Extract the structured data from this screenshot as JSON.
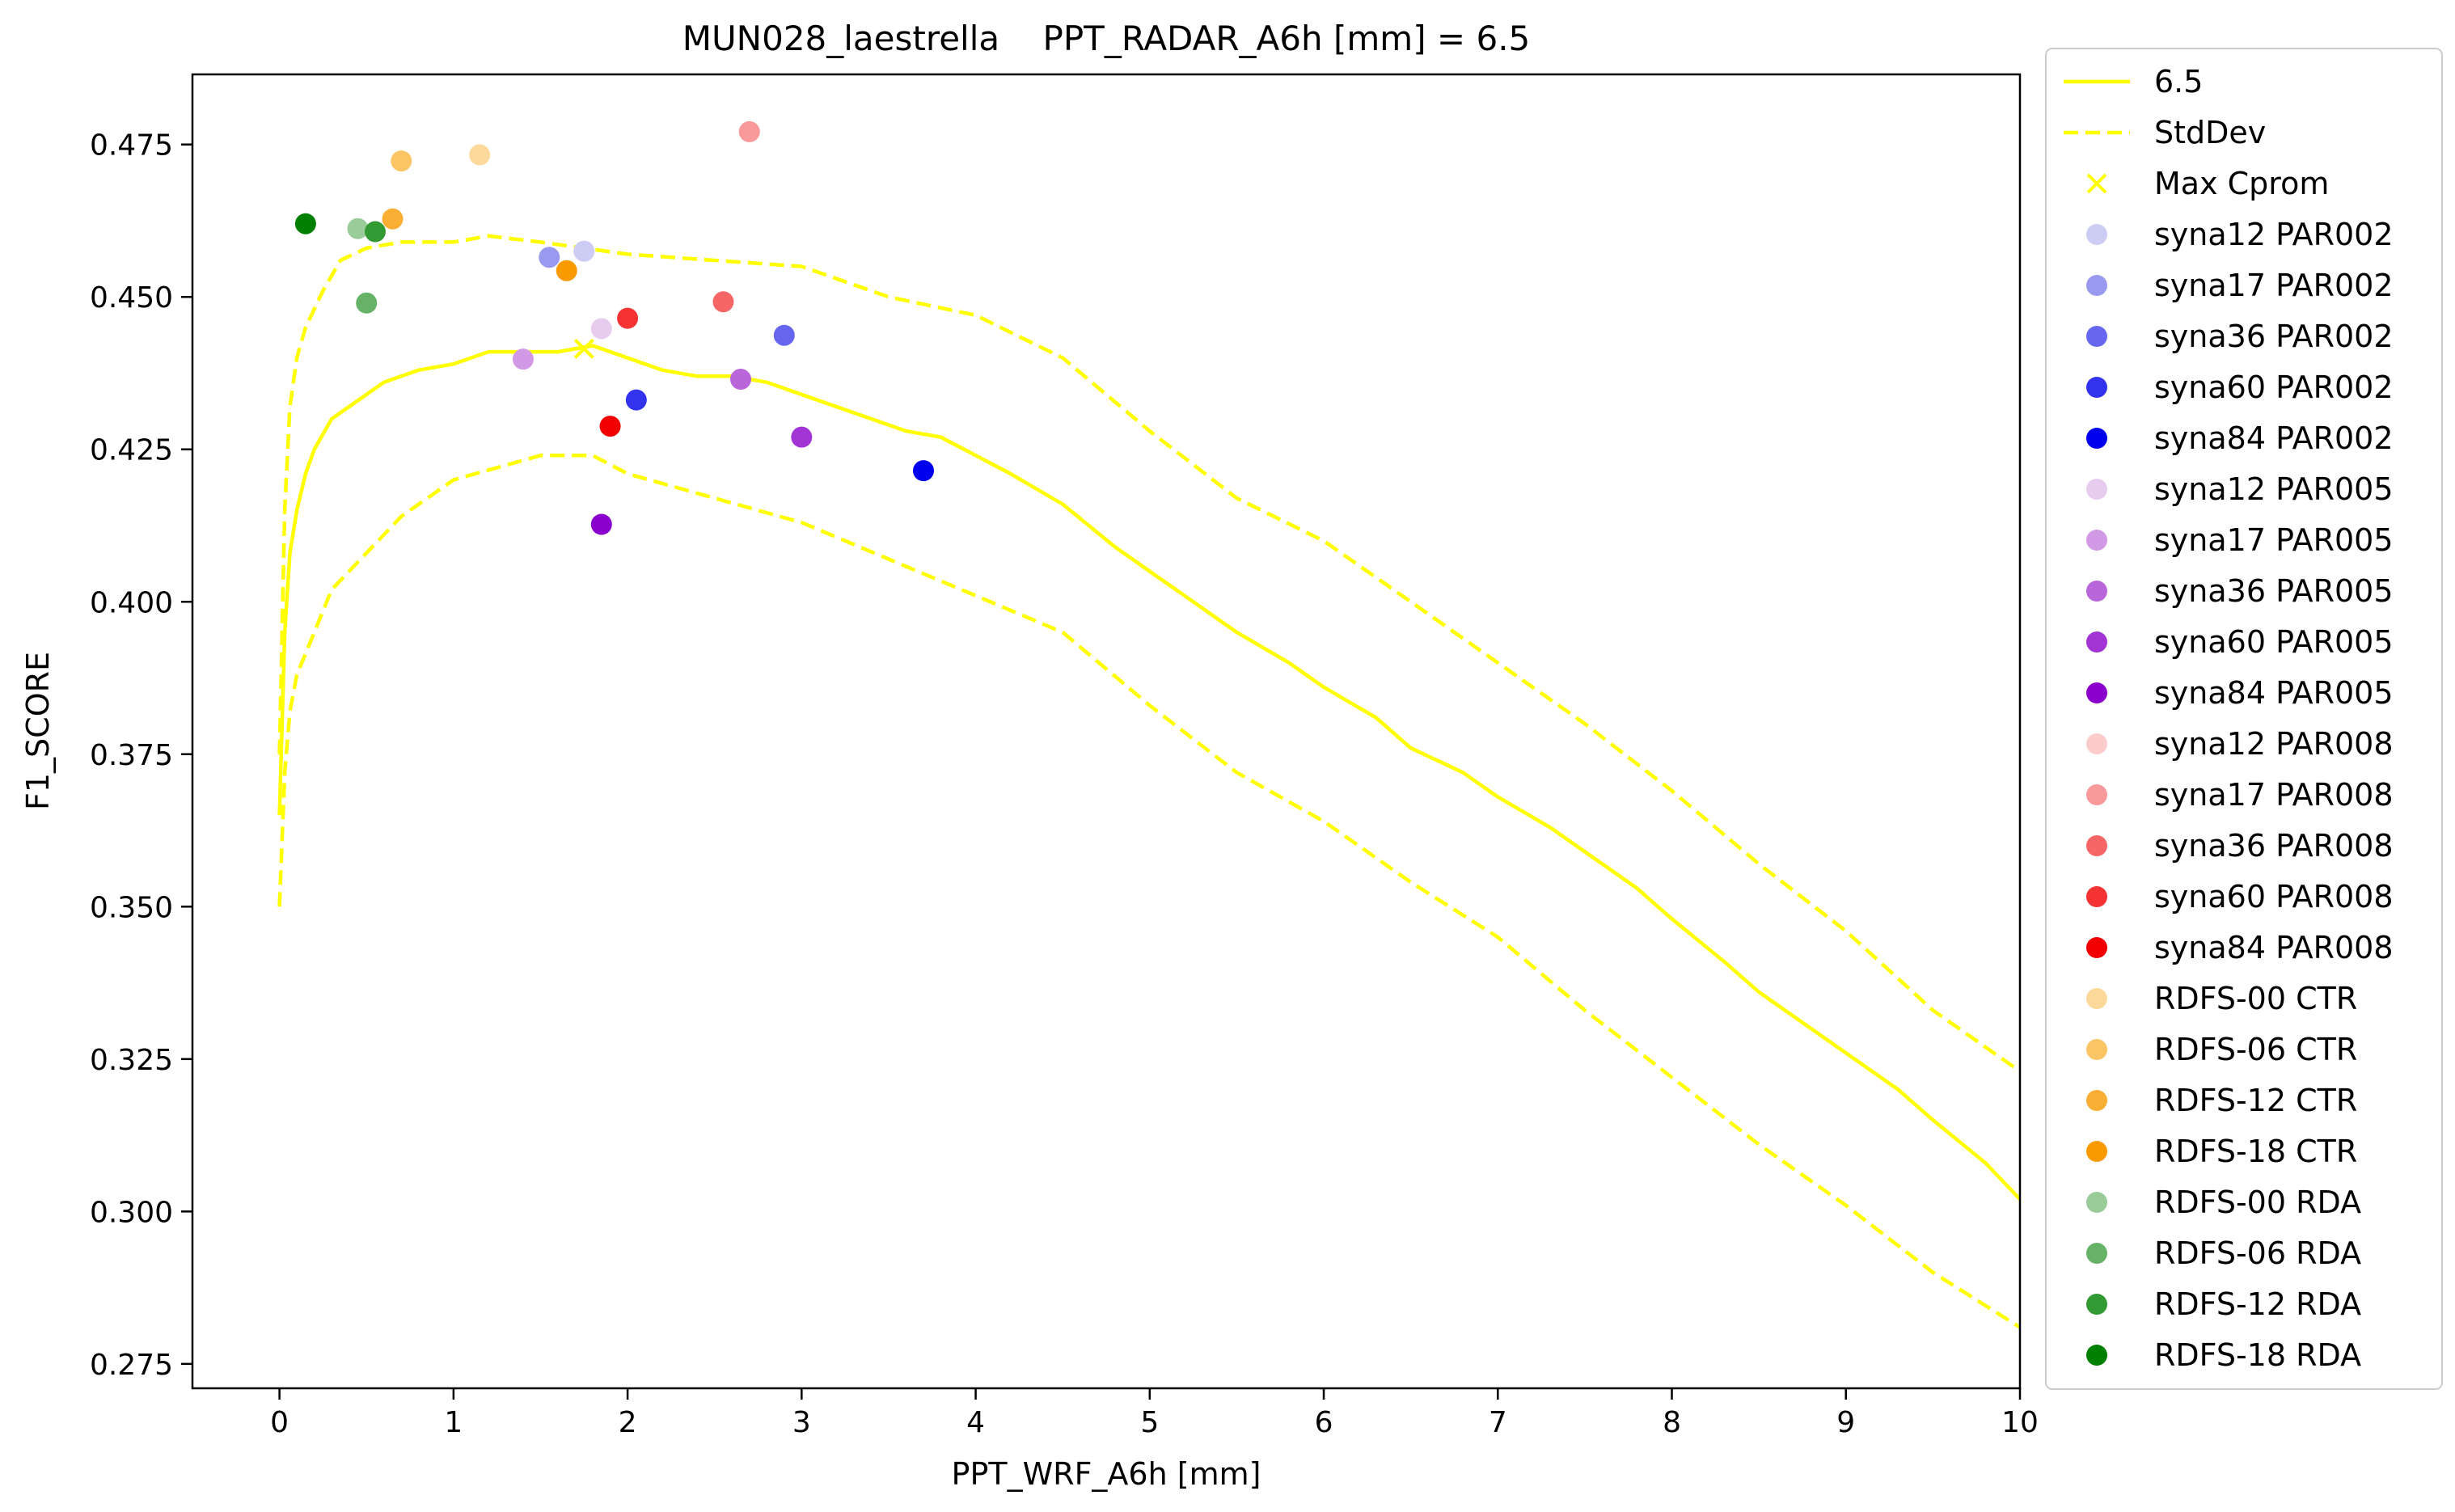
{
  "chart_data": {
    "type": "line",
    "title": "MUN028_laestrella    PPT_RADAR_A6h [mm] = 6.5",
    "xlabel": "PPT_WRF_A6h [mm]",
    "ylabel": "F1_SCORE",
    "xlim": [
      -0.5,
      10
    ],
    "ylim": [
      0.271,
      0.4865
    ],
    "xticks": [
      0,
      1,
      2,
      3,
      4,
      5,
      6,
      7,
      8,
      9,
      10
    ],
    "yticks": [
      0.275,
      0.3,
      0.325,
      0.35,
      0.375,
      0.4,
      0.425,
      0.45,
      0.475
    ],
    "xtick_labels": [
      "0",
      "1",
      "2",
      "3",
      "4",
      "5",
      "6",
      "7",
      "8",
      "9",
      "10"
    ],
    "ytick_labels": [
      "0.275",
      "0.300",
      "0.325",
      "0.350",
      "0.375",
      "0.400",
      "0.425",
      "0.450",
      "0.475"
    ],
    "grid": false,
    "legend_position": "outside-right",
    "mean_curve": {
      "name": "6.5",
      "color": "#ffff00",
      "style": "solid",
      "points": [
        [
          0,
          0.365
        ],
        [
          0.03,
          0.395
        ],
        [
          0.06,
          0.408
        ],
        [
          0.1,
          0.415
        ],
        [
          0.15,
          0.421
        ],
        [
          0.2,
          0.425
        ],
        [
          0.3,
          0.43
        ],
        [
          0.45,
          0.433
        ],
        [
          0.6,
          0.436
        ],
        [
          0.8,
          0.438
        ],
        [
          1.0,
          0.439
        ],
        [
          1.2,
          0.441
        ],
        [
          1.4,
          0.441
        ],
        [
          1.6,
          0.441
        ],
        [
          1.8,
          0.442
        ],
        [
          2.0,
          0.44
        ],
        [
          2.2,
          0.438
        ],
        [
          2.4,
          0.437
        ],
        [
          2.6,
          0.437
        ],
        [
          2.8,
          0.436
        ],
        [
          3.0,
          0.434
        ],
        [
          3.2,
          0.432
        ],
        [
          3.4,
          0.43
        ],
        [
          3.6,
          0.428
        ],
        [
          3.8,
          0.427
        ],
        [
          4.0,
          0.424
        ],
        [
          4.2,
          0.421
        ],
        [
          4.5,
          0.416
        ],
        [
          4.8,
          0.409
        ],
        [
          5.0,
          0.405
        ],
        [
          5.2,
          0.401
        ],
        [
          5.5,
          0.395
        ],
        [
          5.8,
          0.39
        ],
        [
          6.0,
          0.386
        ],
        [
          6.3,
          0.381
        ],
        [
          6.5,
          0.376
        ],
        [
          6.8,
          0.372
        ],
        [
          7.0,
          0.368
        ],
        [
          7.3,
          0.363
        ],
        [
          7.5,
          0.359
        ],
        [
          7.8,
          0.353
        ],
        [
          8.0,
          0.348
        ],
        [
          8.3,
          0.341
        ],
        [
          8.5,
          0.336
        ],
        [
          8.8,
          0.33
        ],
        [
          9.0,
          0.326
        ],
        [
          9.3,
          0.32
        ],
        [
          9.5,
          0.315
        ],
        [
          9.8,
          0.308
        ],
        [
          10.0,
          0.302
        ]
      ]
    },
    "std_upper": {
      "name": "StdDev",
      "color": "#ffff00",
      "style": "dashed",
      "points": [
        [
          0,
          0.375
        ],
        [
          0.03,
          0.415
        ],
        [
          0.06,
          0.432
        ],
        [
          0.1,
          0.44
        ],
        [
          0.15,
          0.445
        ],
        [
          0.25,
          0.451
        ],
        [
          0.35,
          0.456
        ],
        [
          0.5,
          0.458
        ],
        [
          0.7,
          0.459
        ],
        [
          1.0,
          0.459
        ],
        [
          1.2,
          0.46
        ],
        [
          1.5,
          0.459
        ],
        [
          2.0,
          0.457
        ],
        [
          2.5,
          0.456
        ],
        [
          3.0,
          0.455
        ],
        [
          3.5,
          0.45
        ],
        [
          4.0,
          0.447
        ],
        [
          4.5,
          0.44
        ],
        [
          5.0,
          0.428
        ],
        [
          5.5,
          0.417
        ],
        [
          6.0,
          0.41
        ],
        [
          6.5,
          0.4
        ],
        [
          7.0,
          0.39
        ],
        [
          7.5,
          0.38
        ],
        [
          8.0,
          0.369
        ],
        [
          8.5,
          0.357
        ],
        [
          9.0,
          0.346
        ],
        [
          9.5,
          0.333
        ],
        [
          10.0,
          0.323
        ]
      ]
    },
    "std_lower": {
      "name": "StdDev",
      "color": "#ffff00",
      "style": "dashed",
      "points": [
        [
          0,
          0.35
        ],
        [
          0.03,
          0.372
        ],
        [
          0.06,
          0.382
        ],
        [
          0.1,
          0.388
        ],
        [
          0.2,
          0.395
        ],
        [
          0.3,
          0.402
        ],
        [
          0.5,
          0.408
        ],
        [
          0.7,
          0.414
        ],
        [
          1.0,
          0.42
        ],
        [
          1.5,
          0.424
        ],
        [
          1.8,
          0.424
        ],
        [
          2.0,
          0.421
        ],
        [
          2.5,
          0.417
        ],
        [
          3.0,
          0.413
        ],
        [
          3.5,
          0.407
        ],
        [
          4.0,
          0.401
        ],
        [
          4.5,
          0.395
        ],
        [
          5.0,
          0.383
        ],
        [
          5.5,
          0.372
        ],
        [
          6.0,
          0.364
        ],
        [
          6.5,
          0.354
        ],
        [
          7.0,
          0.345
        ],
        [
          7.5,
          0.333
        ],
        [
          8.0,
          0.322
        ],
        [
          8.5,
          0.311
        ],
        [
          9.0,
          0.301
        ],
        [
          9.5,
          0.29
        ],
        [
          10.0,
          0.281
        ]
      ]
    },
    "max_marker": {
      "name": "Max Cprom",
      "color": "#ffff00",
      "x": 1.75,
      "y": 0.4415
    },
    "scatter": [
      {
        "name": "syna12 PAR002",
        "color": "#ccccf5",
        "x": 1.75,
        "y": 0.4575
      },
      {
        "name": "syna17 PAR002",
        "color": "#9999f0",
        "x": 1.55,
        "y": 0.4565
      },
      {
        "name": "syna36 PAR002",
        "color": "#6666f0",
        "x": 2.9,
        "y": 0.4437
      },
      {
        "name": "syna60 PAR002",
        "color": "#3333ee",
        "x": 2.05,
        "y": 0.4331
      },
      {
        "name": "syna84 PAR002",
        "color": "#0000ee",
        "x": 3.7,
        "y": 0.4215
      },
      {
        "name": "syna12 PAR005",
        "color": "#e8ccf0",
        "x": 1.85,
        "y": 0.4448
      },
      {
        "name": "syna17 PAR005",
        "color": "#d199e6",
        "x": 1.4,
        "y": 0.4398
      },
      {
        "name": "syna36 PAR005",
        "color": "#b966db",
        "x": 2.65,
        "y": 0.4365
      },
      {
        "name": "syna60 PAR005",
        "color": "#a233d4",
        "x": 3.0,
        "y": 0.427
      },
      {
        "name": "syna84 PAR005",
        "color": "#8a00cc",
        "x": 1.85,
        "y": 0.4127
      },
      {
        "name": "syna12 PAR008",
        "color": "#fccccc",
        "x": 2.7,
        "y": 0.4771
      },
      {
        "name": "syna17 PAR008",
        "color": "#fa9999",
        "x": 2.7,
        "y": 0.4771
      },
      {
        "name": "syna36 PAR008",
        "color": "#f76666",
        "x": 2.55,
        "y": 0.4492
      },
      {
        "name": "syna60 PAR008",
        "color": "#f53333",
        "x": 2.0,
        "y": 0.4465
      },
      {
        "name": "syna84 PAR008",
        "color": "#f20000",
        "x": 1.9,
        "y": 0.4288
      },
      {
        "name": "RDFS-00 CTR",
        "color": "#fcd99a",
        "x": 1.15,
        "y": 0.4733
      },
      {
        "name": "RDFS-06 CTR",
        "color": "#fbc566",
        "x": 0.7,
        "y": 0.4723
      },
      {
        "name": "RDFS-12 CTR",
        "color": "#faae33",
        "x": 0.65,
        "y": 0.4628
      },
      {
        "name": "RDFS-18 CTR",
        "color": "#f99a00",
        "x": 1.65,
        "y": 0.4543
      },
      {
        "name": "RDFS-00 RDA",
        "color": "#99cc99",
        "x": 0.45,
        "y": 0.4612
      },
      {
        "name": "RDFS-06 RDA",
        "color": "#66b266",
        "x": 0.5,
        "y": 0.449
      },
      {
        "name": "RDFS-12 RDA",
        "color": "#339933",
        "x": 0.55,
        "y": 0.4607
      },
      {
        "name": "RDFS-18 RDA",
        "color": "#008000",
        "x": 0.15,
        "y": 0.462
      }
    ]
  }
}
